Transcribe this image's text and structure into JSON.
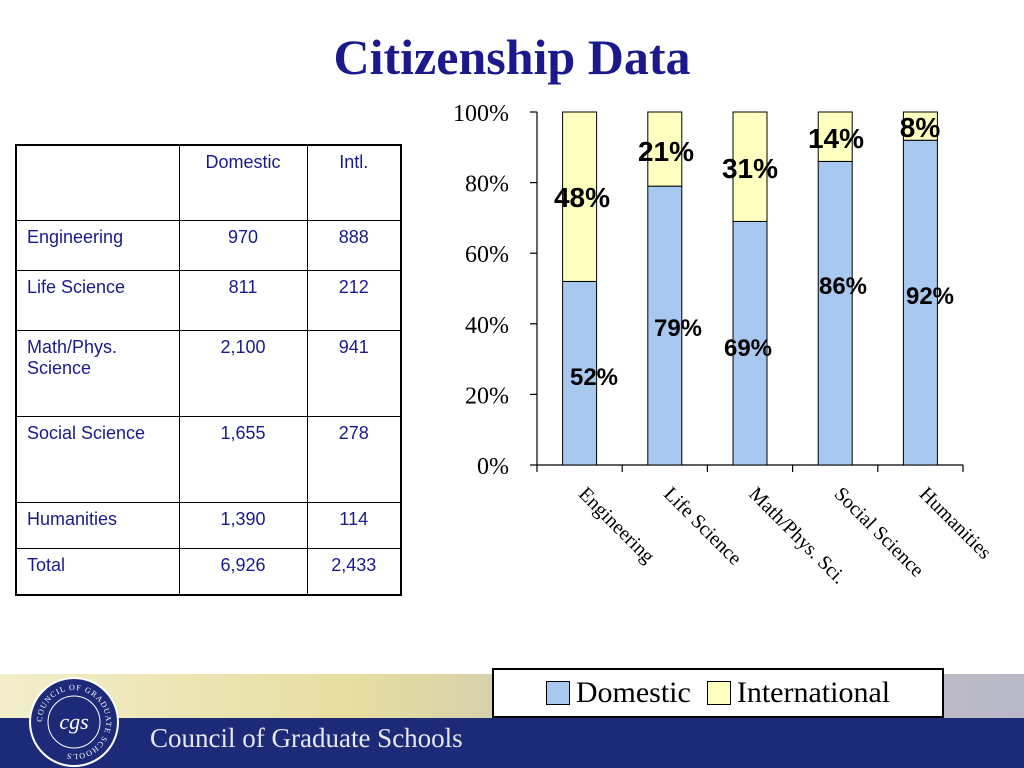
{
  "title": "Citizenship Data",
  "table": {
    "headers": [
      "",
      "Domestic",
      "Intl."
    ],
    "rows": [
      {
        "label": "Engineering",
        "domestic": "970",
        "intl": "888"
      },
      {
        "label": "Life Science",
        "domestic": "811",
        "intl": "212"
      },
      {
        "label": "Math/Phys. Science",
        "domestic": "2,100",
        "intl": "941"
      },
      {
        "label": "Social Science",
        "domestic": "1,655",
        "intl": "278"
      },
      {
        "label": "Humanities",
        "domestic": "1,390",
        "intl": "114"
      },
      {
        "label": "Total",
        "domestic": "6,926",
        "intl": "2,433"
      }
    ]
  },
  "chart_data": {
    "type": "bar",
    "stacked": true,
    "categories": [
      "Engineering",
      "Life Science",
      "Math/Phys. Sci.",
      "Social Science",
      "Humanities"
    ],
    "series": [
      {
        "name": "Domestic",
        "values": [
          52,
          79,
          69,
          86,
          92
        ],
        "labels": [
          "52%",
          "79%",
          "69%",
          "86%",
          "92%"
        ],
        "color": "#a8c8f0"
      },
      {
        "name": "International",
        "values": [
          48,
          21,
          31,
          14,
          8
        ],
        "labels": [
          "48%",
          "21%",
          "31%",
          "14%",
          "8%"
        ],
        "color": "#ffffc0"
      }
    ],
    "yticks": [
      "0%",
      "20%",
      "40%",
      "60%",
      "80%",
      "100%"
    ],
    "ylim": [
      0,
      100
    ],
    "legend_position": "bottom"
  },
  "legend": {
    "domestic": "Domestic",
    "international": "International"
  },
  "footer": {
    "org_name": "Council of Graduate Schools",
    "seal_text": "COUNCIL OF GRADUATE SCHOOLS",
    "seal_monogram": "cgs"
  },
  "colors": {
    "title": "#1a1a8c",
    "table_text": "#1a1a8c",
    "domestic": "#a8c8f0",
    "international": "#ffffc0",
    "footer_band": "#1c2a78"
  }
}
